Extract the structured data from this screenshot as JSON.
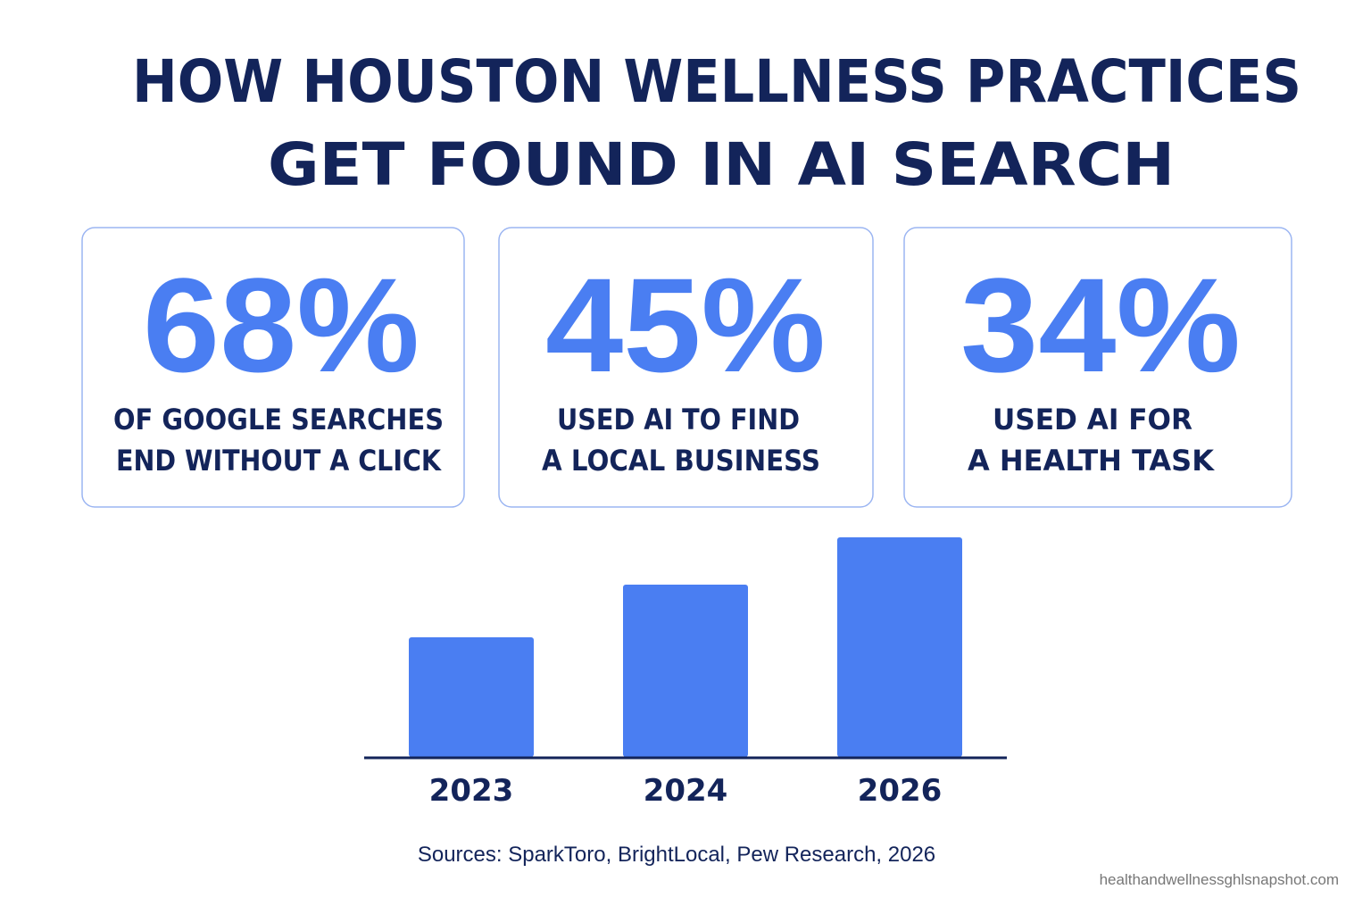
{
  "header": {
    "title_lines": [
      "HOW HOUSTON WELLNESS PRACTICES",
      "GET FOUND IN AI SEARCH"
    ]
  },
  "stats": [
    {
      "value": "68%",
      "label_lines": [
        "OF GOOGLE SEARCHES",
        "END WITHOUT A CLICK"
      ]
    },
    {
      "value": "45%",
      "label_lines": [
        "USED AI TO FIND",
        "A LOCAL BUSINESS"
      ]
    },
    {
      "value": "34%",
      "label_lines": [
        "USED AI FOR",
        "A HEALTH TASK"
      ]
    }
  ],
  "chart_data": {
    "type": "bar",
    "categories": [
      "2023",
      "2024",
      "2026"
    ],
    "values": [
      134,
      193,
      246
    ],
    "color": "#4a7ef2",
    "ylim": [
      0,
      250
    ]
  },
  "footer": {
    "sources": "Sources:  SparkToro, BrightLocal, Pew Research, 2026",
    "watermark": "healthandwellnessghlsnapshot.com"
  }
}
